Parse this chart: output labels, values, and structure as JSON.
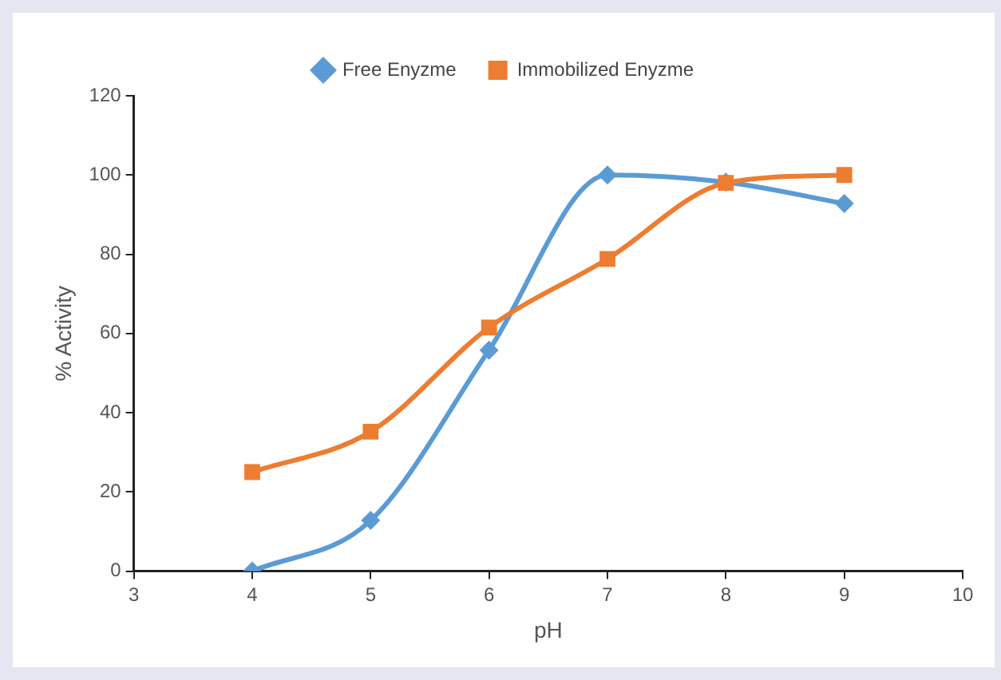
{
  "chart_data": {
    "type": "line",
    "xlabel": "pH",
    "ylabel": "% Activity",
    "x": [
      4,
      5,
      6,
      7,
      8,
      9
    ],
    "series": [
      {
        "name": "Free Enyzme",
        "color": "#5b9bd5",
        "marker": "diamond",
        "values": [
          0,
          12.8,
          55.8,
          100,
          98.2,
          92.8
        ]
      },
      {
        "name": "Immobilized Enyzme",
        "color": "#ed7d31",
        "marker": "square",
        "values": [
          25,
          35.2,
          61.5,
          78.8,
          98,
          100
        ]
      }
    ],
    "xlim": [
      3,
      10
    ],
    "xticks": [
      3,
      4,
      5,
      6,
      7,
      8,
      9,
      10
    ],
    "ylim": [
      0,
      120
    ],
    "yticks": [
      0,
      20,
      40,
      60,
      80,
      100,
      120
    ],
    "grid": false,
    "legend": "top"
  }
}
